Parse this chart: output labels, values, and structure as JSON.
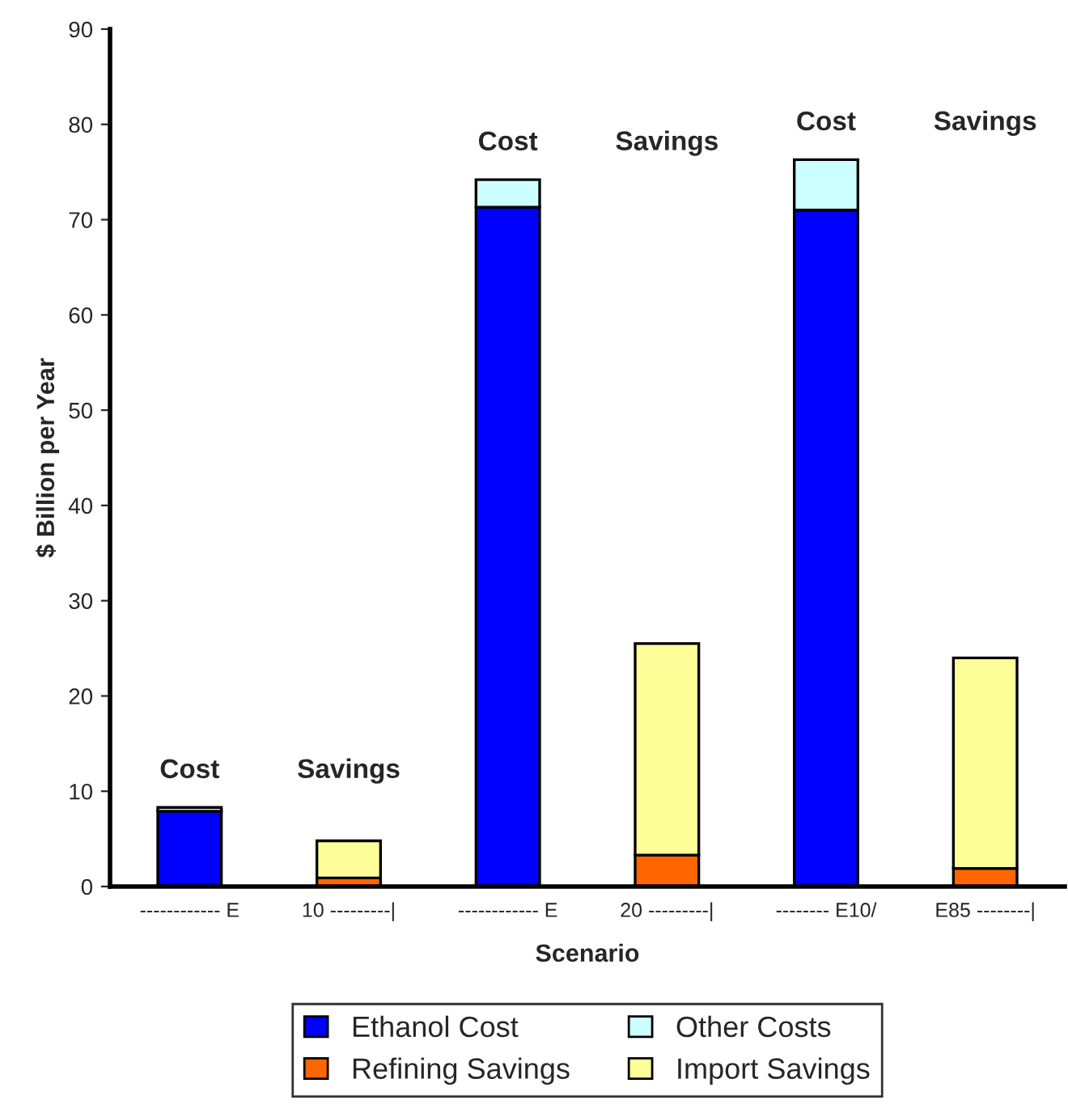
{
  "chart_data": {
    "type": "bar",
    "stacked": true,
    "xlabel": "Scenario",
    "ylabel": "$ Billion per Year",
    "categories": [
      "------------ E",
      "10 ---------|",
      "------------ E",
      "20 ---------|",
      "-------- E10/",
      "E85 --------|"
    ],
    "series": [
      {
        "name": "Ethanol Cost",
        "color": "#0000ff",
        "values": [
          7.9,
          null,
          71.3,
          null,
          71.0,
          null
        ]
      },
      {
        "name": "Other Costs",
        "color": "#ccffff",
        "values": [
          0.4,
          null,
          2.9,
          null,
          5.3,
          null
        ]
      },
      {
        "name": "Refining Savings",
        "color": "#ff6600",
        "values": [
          null,
          0.9,
          null,
          3.3,
          null,
          1.9
        ]
      },
      {
        "name": "Import Savings",
        "color": "#ffff99",
        "values": [
          null,
          3.9,
          null,
          22.2,
          null,
          22.1
        ]
      }
    ],
    "annotations": [
      "Cost",
      "Savings",
      "Cost",
      "Savings",
      "Cost",
      "Savings"
    ],
    "ylim": [
      0,
      90
    ],
    "yticks": [
      0,
      10,
      20,
      30,
      40,
      50,
      60,
      70,
      80,
      90
    ],
    "grid": false,
    "legend": "bottom"
  }
}
